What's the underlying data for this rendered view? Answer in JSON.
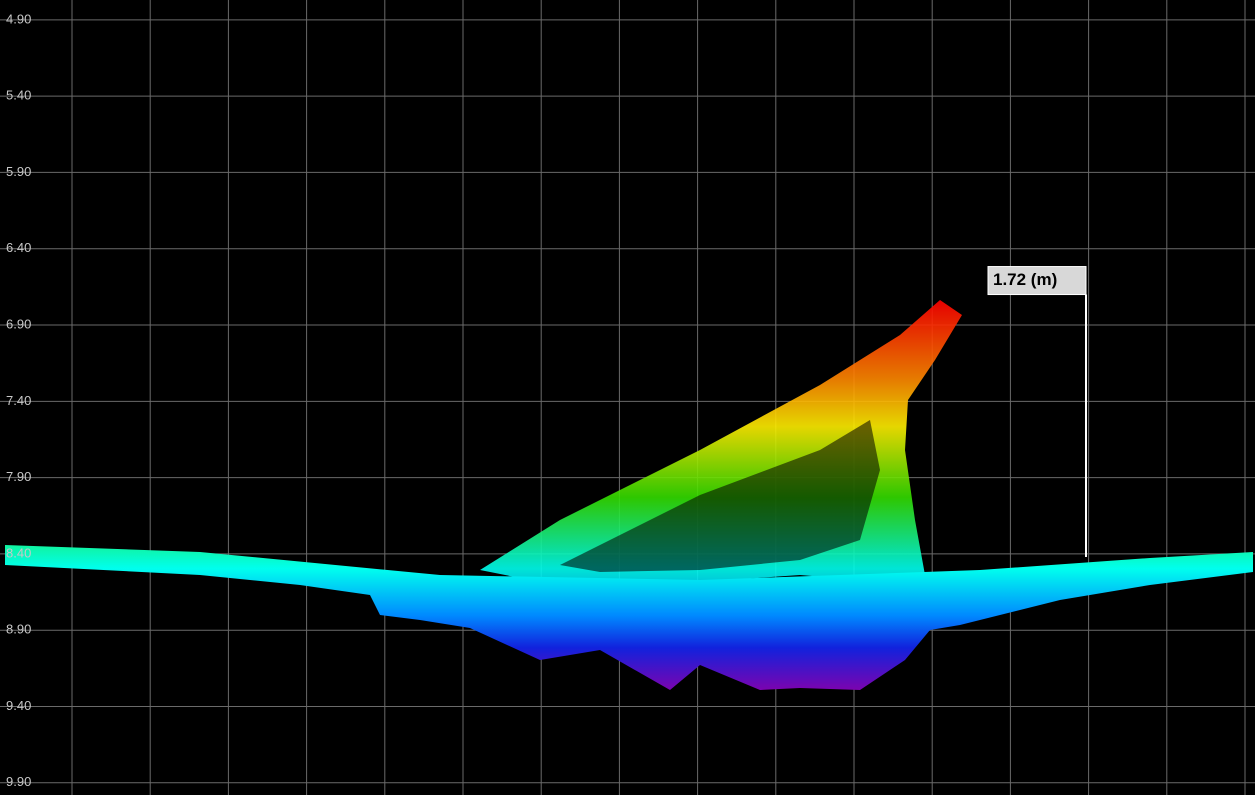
{
  "axis": {
    "ylim": [
      4.77,
      9.98
    ],
    "yticks": [
      {
        "value": 4.9,
        "label": "4.90"
      },
      {
        "value": 5.4,
        "label": "5.40"
      },
      {
        "value": 5.9,
        "label": "5.90"
      },
      {
        "value": 6.4,
        "label": "6.40"
      },
      {
        "value": 6.9,
        "label": "6.90"
      },
      {
        "value": 7.4,
        "label": "7.40"
      },
      {
        "value": 7.9,
        "label": "7.90"
      },
      {
        "value": 8.4,
        "label": "8.40"
      },
      {
        "value": 8.9,
        "label": "8.90"
      },
      {
        "value": 9.4,
        "label": "9.40"
      },
      {
        "value": 9.9,
        "label": "9.90"
      }
    ]
  },
  "measurement": {
    "value": 1.72,
    "label": "1.72 (m)"
  }
}
